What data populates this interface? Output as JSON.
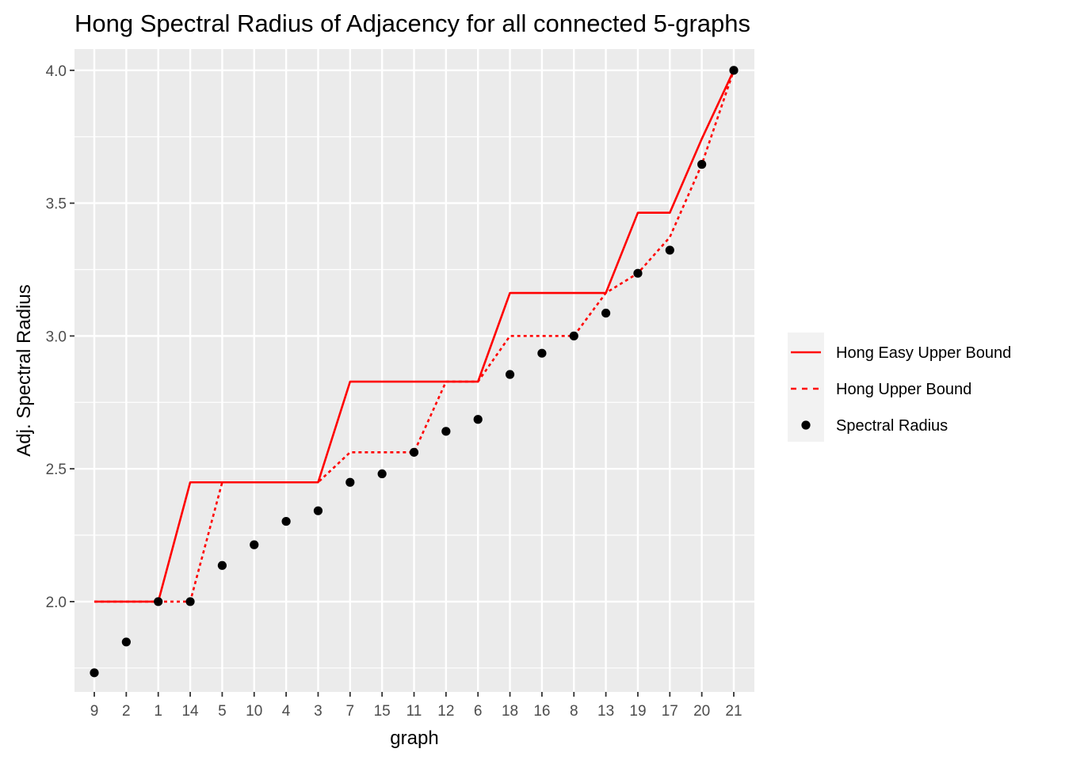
{
  "chart_data": {
    "type": "line",
    "title": "Hong Spectral Radius of Adjacency for all connected 5-graphs",
    "xlabel": "graph",
    "ylabel": "Adj. Spectral Radius",
    "categories": [
      "9",
      "2",
      "1",
      "14",
      "5",
      "10",
      "4",
      "3",
      "7",
      "15",
      "11",
      "12",
      "6",
      "18",
      "16",
      "8",
      "13",
      "19",
      "17",
      "20",
      "21"
    ],
    "ylim": [
      1.66,
      4.08
    ],
    "yticks": [
      2.0,
      2.5,
      3.0,
      3.5,
      4.0
    ],
    "ytick_labels": [
      "2.0",
      "2.5",
      "3.0",
      "3.5",
      "4.0"
    ],
    "grid": true,
    "legend_position": "right",
    "series": [
      {
        "name": "Hong Easy Upper Bound",
        "kind": "line",
        "style": "solid",
        "color": "#ff0000",
        "values": [
          2.0,
          2.0,
          2.0,
          2.449,
          2.449,
          2.449,
          2.449,
          2.449,
          2.828,
          2.828,
          2.828,
          2.828,
          2.828,
          3.162,
          3.162,
          3.162,
          3.162,
          3.464,
          3.464,
          3.742,
          4.0
        ]
      },
      {
        "name": "Hong Upper Bound",
        "kind": "line",
        "style": "dashed",
        "color": "#ff0000",
        "values": [
          2.0,
          2.0,
          2.0,
          2.0,
          2.449,
          2.449,
          2.449,
          2.449,
          2.562,
          2.562,
          2.562,
          2.828,
          2.828,
          3.0,
          3.0,
          3.0,
          3.162,
          3.236,
          3.372,
          3.646,
          4.0
        ]
      },
      {
        "name": "Spectral Radius",
        "kind": "point",
        "color": "#000000",
        "values": [
          1.732,
          1.848,
          2.0,
          2.0,
          2.136,
          2.214,
          2.302,
          2.342,
          2.449,
          2.481,
          2.562,
          2.641,
          2.686,
          2.855,
          2.935,
          3.0,
          3.086,
          3.236,
          3.323,
          3.646,
          4.0
        ]
      }
    ]
  }
}
